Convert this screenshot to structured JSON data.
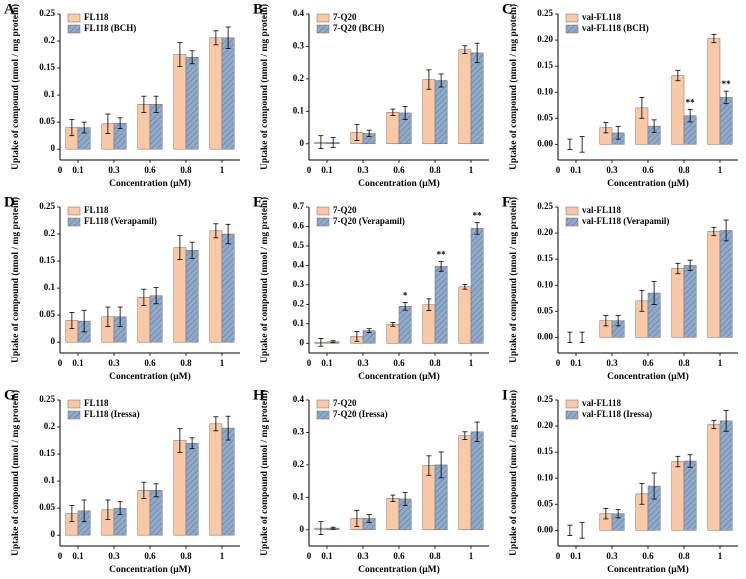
{
  "chart_data": [
    {
      "type": "bar",
      "panel": "A",
      "ylabel": "Uptake of compound (nmol / mg protein)",
      "xlabel": "Concentration (μM)",
      "x_origin_label": "0",
      "categories": [
        "0.1",
        "0.3",
        "0.6",
        "0.8",
        "1"
      ],
      "ylim": [
        -0.02,
        0.25
      ],
      "yticks": [
        0,
        0.05,
        0.1,
        0.15,
        0.2,
        0.25
      ],
      "series": [
        {
          "name": "FL118",
          "color": "#f9c8a6",
          "values": [
            0.04,
            0.047,
            0.083,
            0.175,
            0.206
          ],
          "errors": [
            0.015,
            0.018,
            0.015,
            0.022,
            0.013
          ]
        },
        {
          "name": "FL118 (BCH)",
          "color": "#8faacb",
          "pattern": "hatch",
          "values": [
            0.04,
            0.048,
            0.083,
            0.17,
            0.206
          ],
          "errors": [
            0.01,
            0.01,
            0.015,
            0.012,
            0.02
          ]
        }
      ]
    },
    {
      "type": "bar",
      "panel": "B",
      "ylabel": "Uptake of compound (nmol / mg protein)",
      "xlabel": "Concentration (μM)",
      "x_origin_label": "0",
      "categories": [
        "0.1",
        "0.3",
        "0.6",
        "0.8",
        "1"
      ],
      "ylim": [
        -0.05,
        0.4
      ],
      "yticks": [
        0,
        0.1,
        0.2,
        0.3,
        0.4
      ],
      "series": [
        {
          "name": "7-Q20",
          "color": "#f9c8a6",
          "values": [
            0.005,
            0.035,
            0.097,
            0.198,
            0.29
          ],
          "errors": [
            0.02,
            0.025,
            0.01,
            0.03,
            0.012
          ]
        },
        {
          "name": "7-Q20 (BCH)",
          "color": "#8faacb",
          "pattern": "hatch",
          "values": [
            0.004,
            0.032,
            0.095,
            0.195,
            0.28
          ],
          "errors": [
            0.015,
            0.01,
            0.02,
            0.02,
            0.03
          ]
        }
      ]
    },
    {
      "type": "bar",
      "panel": "C",
      "ylabel": "Uptake of compound (nmol / mg protein)",
      "xlabel": "Concentration (μM)",
      "x_origin_label": "0",
      "categories": [
        "0.1",
        "0.3",
        "0.6",
        "0.8",
        "1"
      ],
      "ylim": [
        -0.03,
        0.25
      ],
      "yticks": [
        {
          "value": 0,
          "label": "0.00"
        },
        0.05,
        {
          "value": 0.1,
          "label": "0.10"
        },
        0.15,
        {
          "value": 0.2,
          "label": "0.20"
        },
        0.25
      ],
      "series": [
        {
          "name": "val-FL118",
          "color": "#f9c8a6",
          "values": [
            0.0,
            0.032,
            0.07,
            0.132,
            0.203
          ],
          "errors": [
            0.01,
            0.01,
            0.02,
            0.01,
            0.008
          ]
        },
        {
          "name": "val-FL118 (BCH)",
          "color": "#8faacb",
          "pattern": "hatch",
          "values": [
            0.0,
            0.022,
            0.035,
            0.055,
            0.09
          ],
          "errors": [
            0.015,
            0.012,
            0.012,
            0.012,
            0.012
          ],
          "annotations": [
            null,
            null,
            null,
            "**",
            "**"
          ]
        }
      ]
    },
    {
      "type": "bar",
      "panel": "D",
      "ylabel": "Uptake of compound (nmol / mg protein)",
      "xlabel": "Concentration (μM)",
      "x_origin_label": "0",
      "categories": [
        "0.1",
        "0.3",
        "0.6",
        "0.8",
        "1"
      ],
      "ylim": [
        -0.02,
        0.25
      ],
      "yticks": [
        0,
        0.05,
        0.1,
        0.15,
        0.2,
        0.25
      ],
      "series": [
        {
          "name": "FL118",
          "color": "#f9c8a6",
          "values": [
            0.04,
            0.047,
            0.083,
            0.175,
            0.206
          ],
          "errors": [
            0.015,
            0.018,
            0.015,
            0.022,
            0.013
          ]
        },
        {
          "name": "FL118 (Verapamil)",
          "color": "#8faacb",
          "pattern": "hatch",
          "values": [
            0.039,
            0.047,
            0.086,
            0.17,
            0.2
          ],
          "errors": [
            0.02,
            0.018,
            0.015,
            0.015,
            0.018
          ]
        }
      ]
    },
    {
      "type": "bar",
      "panel": "E",
      "ylabel": "Uptake of compound (nmol / mg protein)",
      "xlabel": "Concentration (μM)",
      "x_origin_label": "0",
      "categories": [
        "0.1",
        "0.3",
        "0.6",
        "0.8",
        "1"
      ],
      "ylim": [
        -0.05,
        0.7
      ],
      "yticks": [
        0,
        0.1,
        0.2,
        0.3,
        0.4,
        0.5,
        0.6,
        0.7
      ],
      "series": [
        {
          "name": "7-Q20",
          "color": "#f9c8a6",
          "values": [
            0.005,
            0.035,
            0.097,
            0.198,
            0.29
          ],
          "errors": [
            0.02,
            0.025,
            0.01,
            0.03,
            0.012
          ]
        },
        {
          "name": "7-Q20 (Verapamil)",
          "color": "#8faacb",
          "pattern": "hatch",
          "values": [
            0.008,
            0.065,
            0.19,
            0.395,
            0.59
          ],
          "errors": [
            0.005,
            0.01,
            0.02,
            0.025,
            0.03
          ],
          "annotations": [
            null,
            null,
            "*",
            "**",
            "**"
          ]
        }
      ]
    },
    {
      "type": "bar",
      "panel": "F",
      "ylabel": "Uptake of compound (nmol / mg protein)",
      "xlabel": "Concentration (μM)",
      "x_origin_label": "0",
      "categories": [
        "0.1",
        "0.3",
        "0.6",
        "0.8",
        "1"
      ],
      "ylim": [
        -0.03,
        0.25
      ],
      "yticks": [
        {
          "value": 0,
          "label": "0.00"
        },
        0.05,
        {
          "value": 0.1,
          "label": "0.10"
        },
        0.15,
        {
          "value": 0.2,
          "label": "0.20"
        },
        0.25
      ],
      "series": [
        {
          "name": "val-FL118",
          "color": "#f9c8a6",
          "values": [
            0.0,
            0.032,
            0.07,
            0.132,
            0.203
          ],
          "errors": [
            0.01,
            0.01,
            0.02,
            0.01,
            0.008
          ]
        },
        {
          "name": "val-FL118 (Verapamil)",
          "color": "#8faacb",
          "pattern": "hatch",
          "values": [
            0.0,
            0.032,
            0.085,
            0.138,
            0.205
          ],
          "errors": [
            0.01,
            0.01,
            0.022,
            0.01,
            0.02
          ]
        }
      ]
    },
    {
      "type": "bar",
      "panel": "G",
      "ylabel": "Uptake of compound (nmol / mg protein)",
      "xlabel": "Concentration (μM)",
      "x_origin_label": "0",
      "categories": [
        "0.1",
        "0.3",
        "0.6",
        "0.8",
        "1"
      ],
      "ylim": [
        -0.02,
        0.25
      ],
      "yticks": [
        0,
        0.05,
        0.1,
        0.15,
        0.2,
        0.25
      ],
      "series": [
        {
          "name": "FL118",
          "color": "#f9c8a6",
          "values": [
            0.04,
            0.047,
            0.083,
            0.175,
            0.206
          ],
          "errors": [
            0.015,
            0.018,
            0.015,
            0.022,
            0.013
          ]
        },
        {
          "name": "FL118 (Iressa)",
          "color": "#8faacb",
          "pattern": "hatch",
          "values": [
            0.045,
            0.05,
            0.083,
            0.17,
            0.198
          ],
          "errors": [
            0.02,
            0.012,
            0.012,
            0.01,
            0.022
          ]
        }
      ]
    },
    {
      "type": "bar",
      "panel": "H",
      "ylabel": "Uptake of compound (nmol / mg protein)",
      "xlabel": "Concentration (μM)",
      "x_origin_label": "0",
      "categories": [
        "0.1",
        "0.3",
        "0.6",
        "0.8",
        "1"
      ],
      "ylim": [
        -0.05,
        0.4
      ],
      "yticks": [
        0,
        0.1,
        0.2,
        0.3,
        0.4
      ],
      "series": [
        {
          "name": "7-Q20",
          "color": "#f9c8a6",
          "values": [
            0.005,
            0.035,
            0.097,
            0.198,
            0.29
          ],
          "errors": [
            0.02,
            0.025,
            0.01,
            0.03,
            0.012
          ]
        },
        {
          "name": "7-Q20 (Iressa)",
          "color": "#8faacb",
          "pattern": "hatch",
          "values": [
            0.005,
            0.035,
            0.095,
            0.2,
            0.302
          ],
          "errors": [
            0.003,
            0.012,
            0.02,
            0.04,
            0.03
          ]
        }
      ]
    },
    {
      "type": "bar",
      "panel": "I",
      "ylabel": "Uptake of compound (nmol / mg protein)",
      "xlabel": "Concentration (μM)",
      "x_origin_label": "0",
      "categories": [
        "0.1",
        "0.3",
        "0.6",
        "0.8",
        "1"
      ],
      "ylim": [
        -0.03,
        0.25
      ],
      "yticks": [
        {
          "value": 0,
          "label": "0.00"
        },
        0.05,
        {
          "value": 0.1,
          "label": "0.10"
        },
        0.15,
        {
          "value": 0.2,
          "label": "0.20"
        },
        0.25
      ],
      "series": [
        {
          "name": "val-FL118",
          "color": "#f9c8a6",
          "values": [
            0.0,
            0.032,
            0.07,
            0.132,
            0.203
          ],
          "errors": [
            0.01,
            0.01,
            0.02,
            0.01,
            0.008
          ]
        },
        {
          "name": "val-FL118 (Iressa)",
          "color": "#8faacb",
          "pattern": "hatch",
          "values": [
            0.0,
            0.032,
            0.085,
            0.133,
            0.21
          ],
          "errors": [
            0.015,
            0.008,
            0.025,
            0.012,
            0.02
          ]
        }
      ]
    }
  ]
}
